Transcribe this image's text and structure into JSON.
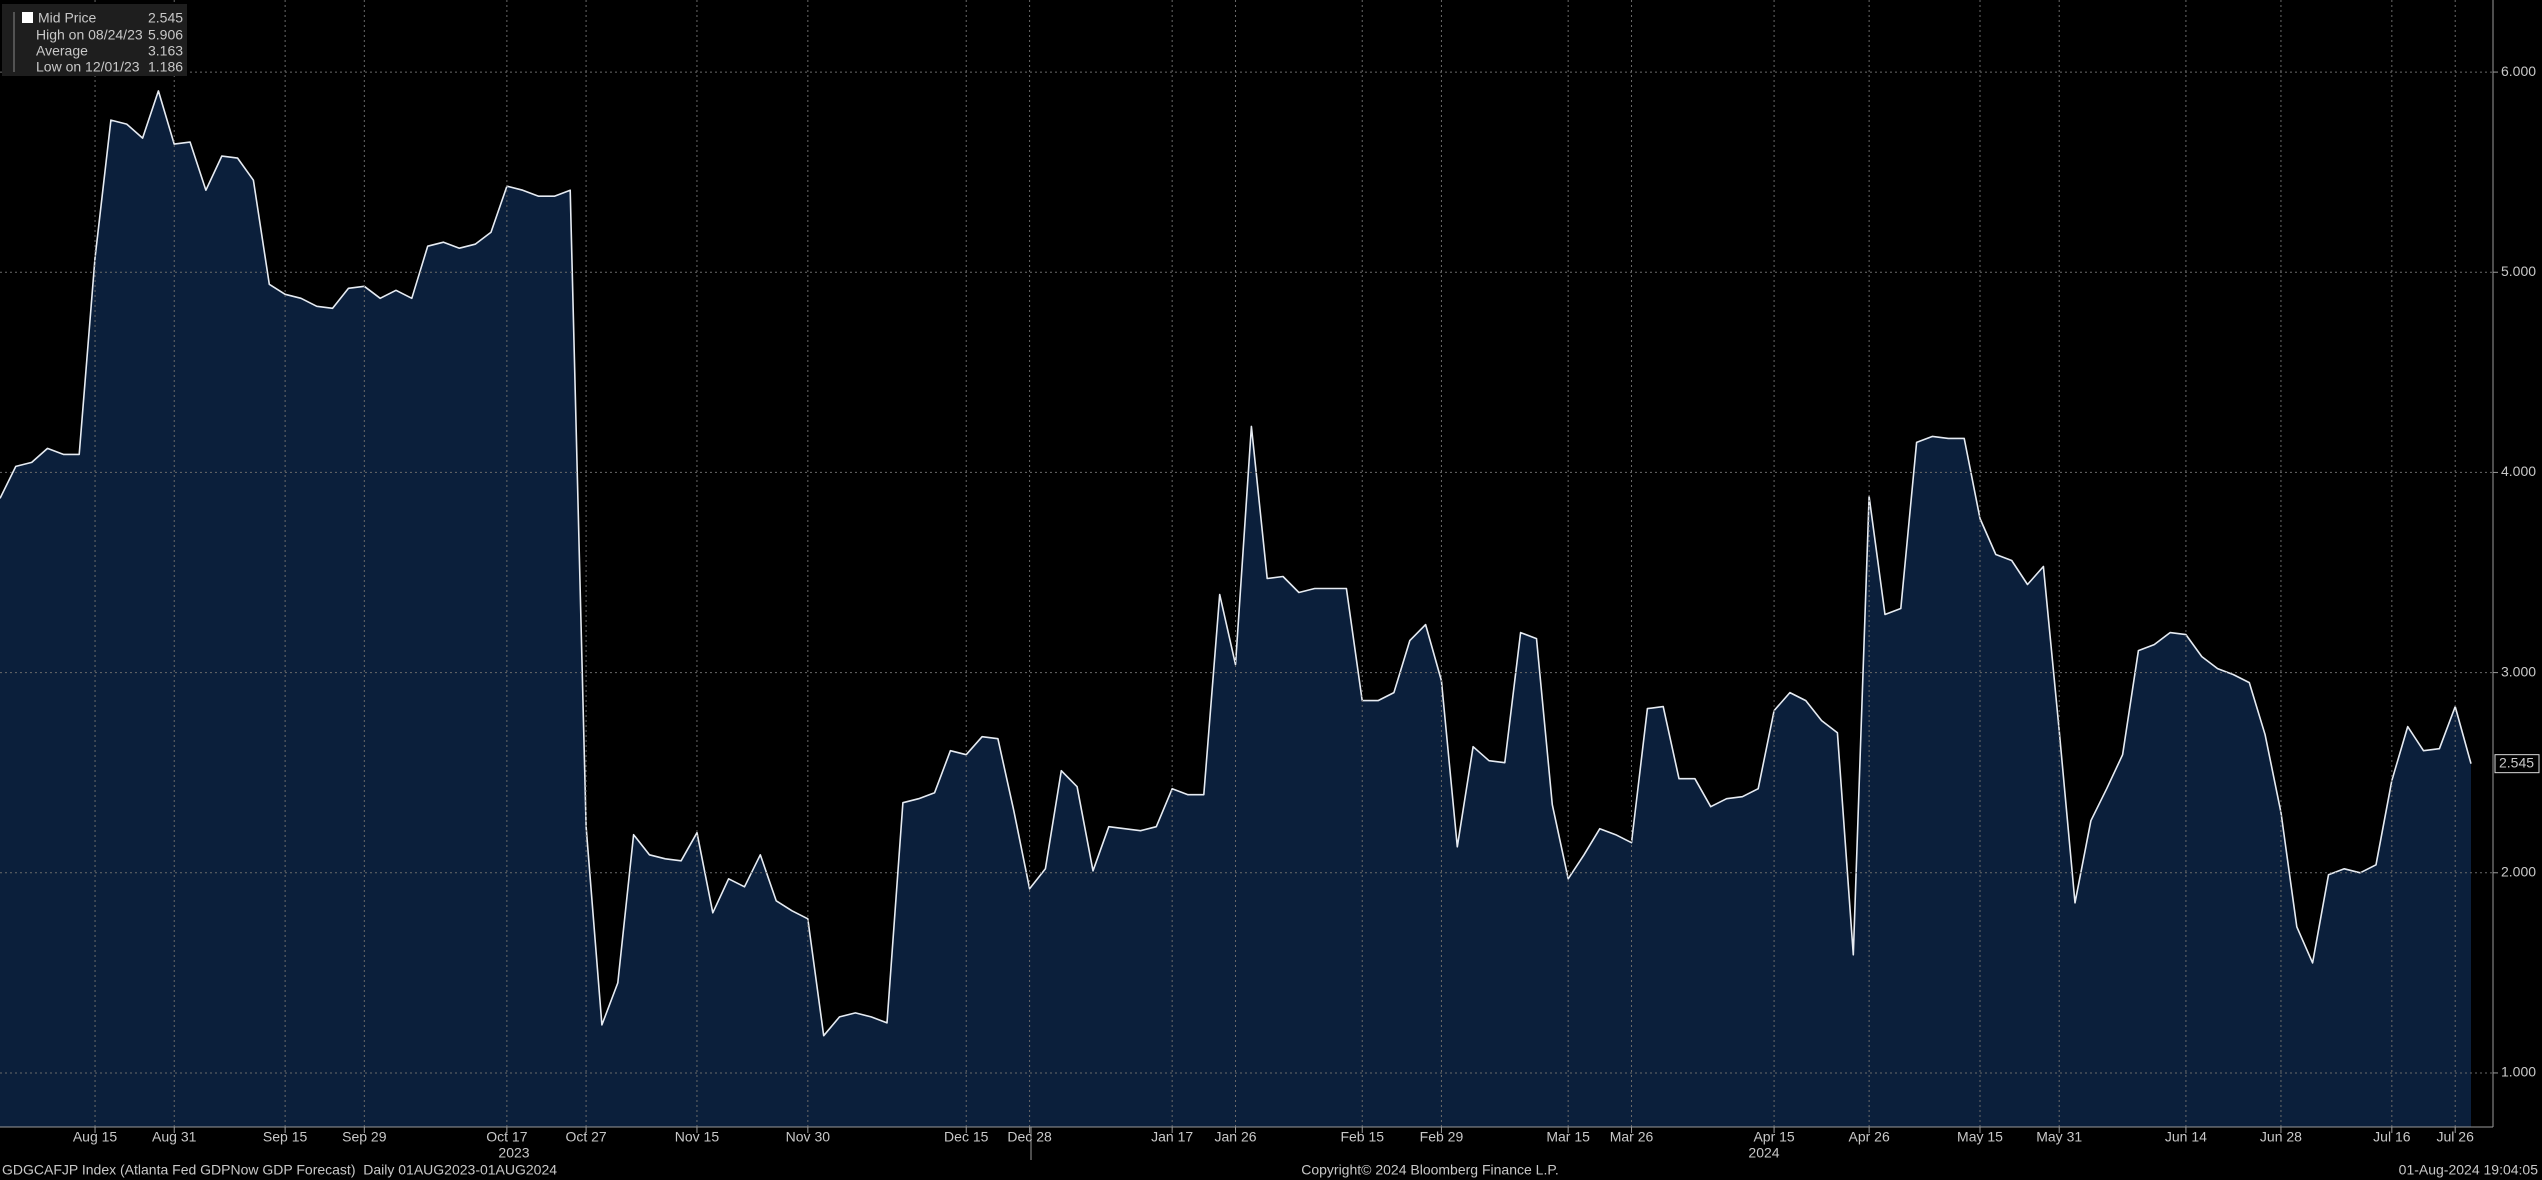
{
  "chart_data": {
    "type": "area",
    "series": [
      {
        "name": "Mid Price",
        "color": "#e6ebf2",
        "fill": "#0b1f3b",
        "values": [
          3.87,
          4.03,
          4.05,
          4.12,
          4.09,
          4.09,
          5.07,
          5.76,
          5.74,
          5.67,
          5.906,
          5.64,
          5.65,
          5.41,
          5.58,
          5.57,
          5.46,
          4.94,
          4.89,
          4.87,
          4.83,
          4.82,
          4.92,
          4.93,
          4.87,
          4.91,
          4.87,
          5.13,
          5.15,
          5.12,
          5.14,
          5.2,
          5.43,
          5.41,
          5.38,
          5.38,
          5.41,
          2.23,
          1.24,
          1.45,
          2.19,
          2.09,
          2.07,
          2.06,
          2.2,
          1.8,
          1.97,
          1.93,
          2.09,
          1.86,
          1.81,
          1.77,
          1.186,
          1.28,
          1.3,
          1.28,
          1.25,
          2.35,
          2.37,
          2.4,
          2.61,
          2.59,
          2.68,
          2.67,
          2.31,
          1.92,
          2.02,
          2.51,
          2.43,
          2.01,
          2.23,
          2.22,
          2.21,
          2.23,
          2.42,
          2.39,
          2.39,
          3.39,
          3.04,
          4.23,
          3.47,
          3.48,
          3.4,
          3.42,
          3.42,
          3.42,
          2.86,
          2.86,
          2.9,
          3.16,
          3.24,
          2.96,
          2.13,
          2.63,
          2.56,
          2.55,
          3.2,
          3.17,
          2.34,
          1.97,
          2.09,
          2.22,
          2.19,
          2.15,
          2.82,
          2.83,
          2.47,
          2.47,
          2.33,
          2.37,
          2.38,
          2.42,
          2.81,
          2.9,
          2.86,
          2.76,
          2.7,
          1.59,
          3.88,
          3.29,
          3.32,
          4.15,
          4.18,
          4.17,
          4.17,
          3.77,
          3.59,
          3.56,
          3.44,
          3.53,
          2.71,
          1.85,
          2.26,
          2.42,
          2.59,
          3.11,
          3.14,
          3.2,
          3.19,
          3.08,
          3.02,
          2.99,
          2.95,
          2.69,
          2.3,
          1.73,
          1.55,
          1.99,
          2.02,
          2.0,
          2.04,
          2.46,
          2.73,
          2.61,
          2.62,
          2.83,
          2.545
        ]
      }
    ],
    "categories": [
      null,
      null,
      null,
      null,
      null,
      null,
      "Aug 15",
      null,
      null,
      null,
      null,
      "Aug 31",
      null,
      null,
      null,
      null,
      null,
      null,
      "Sep 15",
      null,
      null,
      null,
      null,
      "Sep 29",
      null,
      null,
      null,
      null,
      null,
      null,
      null,
      null,
      "Oct 17",
      null,
      null,
      null,
      null,
      "Oct 27",
      null,
      null,
      null,
      null,
      null,
      null,
      "Nov 15",
      null,
      null,
      null,
      null,
      null,
      null,
      "Nov 30",
      null,
      null,
      null,
      null,
      null,
      null,
      null,
      null,
      null,
      "Dec 15",
      null,
      null,
      null,
      "Dec 28",
      null,
      null,
      null,
      null,
      null,
      null,
      null,
      null,
      "Jan 17",
      null,
      null,
      null,
      "Jan 26",
      null,
      null,
      null,
      null,
      null,
      null,
      null,
      "Feb 15",
      null,
      null,
      null,
      null,
      "Feb 29",
      null,
      null,
      null,
      null,
      null,
      null,
      null,
      "Mar 15",
      null,
      null,
      null,
      "Mar 26",
      null,
      null,
      null,
      null,
      null,
      null,
      null,
      null,
      "Apr 15",
      null,
      null,
      null,
      null,
      null,
      "Apr 26",
      null,
      null,
      null,
      null,
      null,
      null,
      "May 15",
      null,
      null,
      null,
      null,
      "May 31",
      null,
      null,
      null,
      null,
      null,
      null,
      null,
      "Jun 14",
      null,
      null,
      null,
      null,
      null,
      "Jun 28",
      null,
      null,
      null,
      null,
      null,
      null,
      "Jul 16",
      null,
      null,
      null,
      "Jul 26",
      null
    ],
    "year_labels": [
      "2023",
      "2024"
    ],
    "ylim": [
      0.73,
      6.36
    ],
    "yticks": [
      {
        "value": 1,
        "label": "1.000"
      },
      {
        "value": 2,
        "label": "2.000"
      },
      {
        "value": 3,
        "label": "3.000"
      },
      {
        "value": 4,
        "label": "4.000"
      },
      {
        "value": 5,
        "label": "5.000"
      },
      {
        "value": 6,
        "label": "6.000"
      }
    ],
    "grid": true,
    "legend_stats": [
      {
        "label": "High on 08/24/23",
        "value": 5.906
      },
      {
        "label": "Average",
        "value": 3.163
      },
      {
        "label": "Low on 12/01/23",
        "value": 1.186
      }
    ],
    "footer": {
      "left": "GDGCAFJP Index (Atlanta Fed GDPNow GDP Forecast)  Daily 01AUG2023-01AUG2024",
      "center": "Copyright© 2024 Bloomberg Finance L.P.",
      "right": "01-Aug-2024 19:04:05"
    }
  }
}
